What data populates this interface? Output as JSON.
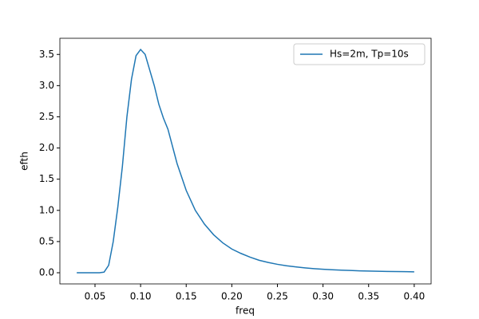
{
  "chart_data": {
    "type": "line",
    "x_label": "freq",
    "y_label": "efth",
    "x": [
      0.03,
      0.04,
      0.05,
      0.055,
      0.06,
      0.065,
      0.07,
      0.075,
      0.08,
      0.085,
      0.09,
      0.095,
      0.1,
      0.105,
      0.11,
      0.115,
      0.12,
      0.125,
      0.13,
      0.14,
      0.15,
      0.16,
      0.17,
      0.18,
      0.19,
      0.2,
      0.21,
      0.22,
      0.23,
      0.24,
      0.25,
      0.26,
      0.27,
      0.28,
      0.29,
      0.3,
      0.31,
      0.32,
      0.33,
      0.34,
      0.35,
      0.36,
      0.37,
      0.38,
      0.39,
      0.4
    ],
    "series": [
      {
        "name": "Hs=2m, Tp=10s",
        "color": "#1f77b4",
        "values": [
          0,
          0,
          0,
          0,
          0.01,
          0.12,
          0.5,
          1.05,
          1.7,
          2.5,
          3.1,
          3.48,
          3.58,
          3.5,
          3.25,
          3.0,
          2.7,
          2.48,
          2.3,
          1.75,
          1.32,
          1.0,
          0.78,
          0.61,
          0.48,
          0.38,
          0.31,
          0.25,
          0.2,
          0.165,
          0.135,
          0.112,
          0.094,
          0.079,
          0.066,
          0.056,
          0.048,
          0.041,
          0.036,
          0.031,
          0.027,
          0.024,
          0.021,
          0.019,
          0.017,
          0.015
        ]
      }
    ],
    "xlim": [
      0.0115,
      0.4185
    ],
    "ylim": [
      -0.179,
      3.759
    ],
    "xticks": [
      0.05,
      {
        "value": 0.1,
        "label": "0.10"
      },
      0.15,
      {
        "value": 0.2,
        "label": "0.20"
      },
      0.25,
      {
        "value": 0.3,
        "label": "0.30"
      },
      0.35,
      {
        "value": 0.4,
        "label": "0.40"
      }
    ],
    "yticks": [
      {
        "value": 0,
        "label": "0.0"
      },
      0.5,
      {
        "value": 1,
        "label": "1.0"
      },
      1.5,
      {
        "value": 2,
        "label": "2.0"
      },
      2.5,
      {
        "value": 3,
        "label": "3.0"
      },
      3.5
    ],
    "grid": false,
    "legend": "upper right"
  }
}
